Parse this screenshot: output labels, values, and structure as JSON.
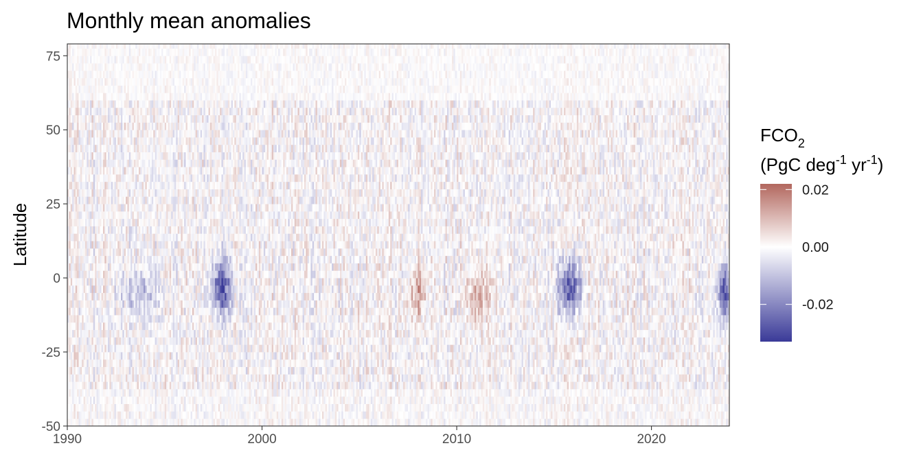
{
  "chart_data": {
    "type": "heatmap",
    "title": "Monthly mean anomalies",
    "xlabel": "",
    "ylabel": "Latitude",
    "x_range": [
      1990,
      2024
    ],
    "y_range": [
      -50,
      79
    ],
    "x_ticks": [
      1990,
      2000,
      2010,
      2020
    ],
    "x_tick_labels": [
      "1990",
      "2000",
      "2010",
      "2020"
    ],
    "y_ticks": [
      -50,
      -25,
      0,
      25,
      50,
      75
    ],
    "y_tick_labels": [
      "-50",
      "-25",
      "0",
      "25",
      "50",
      "75"
    ],
    "legend": {
      "title_main": "FCO",
      "title_sub": "2",
      "units": [
        "(PgC deg",
        "-1",
        " yr",
        "-1",
        ")"
      ],
      "range": [
        -0.033,
        0.022
      ],
      "breaks": [
        0.02,
        0.0,
        -0.02
      ],
      "break_labels": [
        "0.02",
        "0.00",
        "-0.02"
      ],
      "colors": {
        "high": "#b2675e",
        "mid": "#ffffff",
        "low": "#3a3a98"
      },
      "placement": "right"
    },
    "grid": false,
    "notable_features": [
      {
        "year_start": 1997.5,
        "year_end": 1998.4,
        "lat_center": -3,
        "value": -0.033,
        "label": "strong negative anomaly (1997-98)"
      },
      {
        "year_start": 2015.2,
        "year_end": 2016.4,
        "lat_center": -3,
        "value": -0.03,
        "label": "strong negative anomaly (2015-16)"
      },
      {
        "year_start": 2023.5,
        "year_end": 2024.0,
        "lat_center": -5,
        "value": -0.028,
        "label": "negative anomaly (2023)"
      },
      {
        "year_start": 2007.5,
        "year_end": 2008.5,
        "lat_center": -5,
        "value": 0.012,
        "label": "positive anomaly (2008)"
      },
      {
        "year_start": 2010.5,
        "year_end": 2011.8,
        "lat_center": -6,
        "value": 0.012,
        "label": "positive anomaly (2010-11)"
      },
      {
        "year_start": 1992.5,
        "year_end": 1995.0,
        "lat_center": -5,
        "value": -0.012,
        "label": "negative anomaly (1992-95)"
      }
    ]
  }
}
